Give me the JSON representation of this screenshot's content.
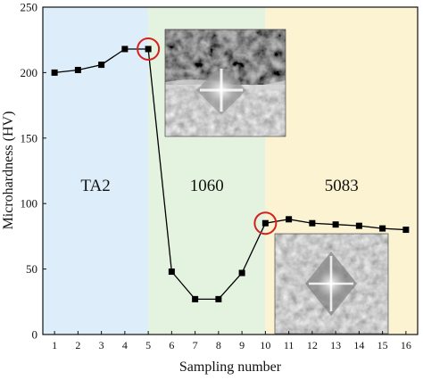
{
  "chart_data": {
    "type": "line",
    "xlabel": "Sampling number",
    "ylabel": "Microhardness (HV)",
    "xlim": [
      0.5,
      16.5
    ],
    "ylim": [
      0,
      250
    ],
    "x_ticks": [
      "1",
      "2",
      "3",
      "4",
      "5",
      "6",
      "7",
      "8",
      "9",
      "10",
      "11",
      "12",
      "13",
      "14",
      "15",
      "16"
    ],
    "y_ticks": [
      "0",
      "50",
      "100",
      "150",
      "200",
      "250"
    ],
    "grid": false,
    "series": [
      {
        "x": [
          1,
          2,
          3,
          4,
          5,
          6,
          7,
          8,
          9,
          10,
          11,
          12,
          13,
          14,
          15,
          16
        ],
        "values": [
          200,
          202,
          206,
          218,
          218,
          48,
          27,
          27,
          47,
          85,
          88,
          85,
          84,
          83,
          81,
          80
        ],
        "color": "#000000",
        "marker": "square"
      }
    ],
    "regions": [
      {
        "label": "TA2",
        "x_from": 0.5,
        "x_to": 5,
        "color": "#ddeefa"
      },
      {
        "label": "1060",
        "x_from": 5,
        "x_to": 10,
        "color": "#e3f3df"
      },
      {
        "label": "5083",
        "x_from": 10,
        "x_to": 16.5,
        "color": "#fbf3d2"
      }
    ],
    "highlighted_points": [
      {
        "x": 5,
        "y": 218,
        "color": "#d62020"
      },
      {
        "x": 10,
        "y": 85,
        "color": "#d62020"
      }
    ],
    "insets": [
      {
        "name": "indentation-micrograph-1060",
        "position": "upper-middle"
      },
      {
        "name": "indentation-micrograph-5083",
        "position": "lower-right"
      }
    ]
  }
}
